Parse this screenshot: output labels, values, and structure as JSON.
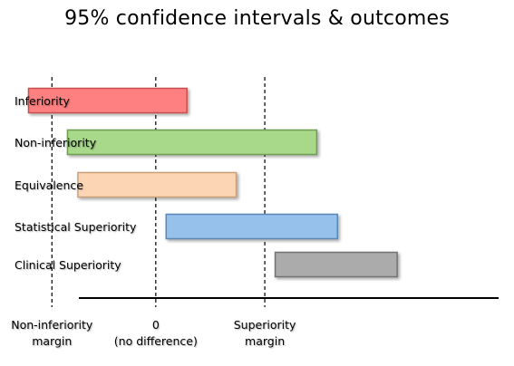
{
  "title": "95% confidence intervals & outcomes",
  "chart_data": {
    "type": "interval",
    "xlim": [
      -3.0,
      6.9
    ],
    "reference_lines": [
      {
        "value": -2,
        "label_line1": "Non-inferiority",
        "label_line2": "margin"
      },
      {
        "value": 0,
        "label_line1": "0",
        "label_line2": "(no difference)"
      },
      {
        "value": 2.1,
        "label_line1": "Superiority",
        "label_line2": "margin"
      }
    ],
    "intervals": [
      {
        "name": "Inferiority",
        "low": -2.45,
        "high": 0.6,
        "fill": "#FF8080",
        "stroke": "#C85050"
      },
      {
        "name": "Non-inferiority",
        "low": -1.7,
        "high": 3.1,
        "fill": "#A8D88A",
        "stroke": "#6E9E52"
      },
      {
        "name": "Equivalence",
        "low": -1.5,
        "high": 1.55,
        "fill": "#FCD5B4",
        "stroke": "#C8A07A"
      },
      {
        "name": "Statistical Superiority",
        "low": 0.2,
        "high": 3.5,
        "fill": "#95C1EA",
        "stroke": "#5C88B5"
      },
      {
        "name": "Clinical Superiority",
        "low": 2.3,
        "high": 4.65,
        "fill": "#ABABAB",
        "stroke": "#737373"
      }
    ]
  }
}
